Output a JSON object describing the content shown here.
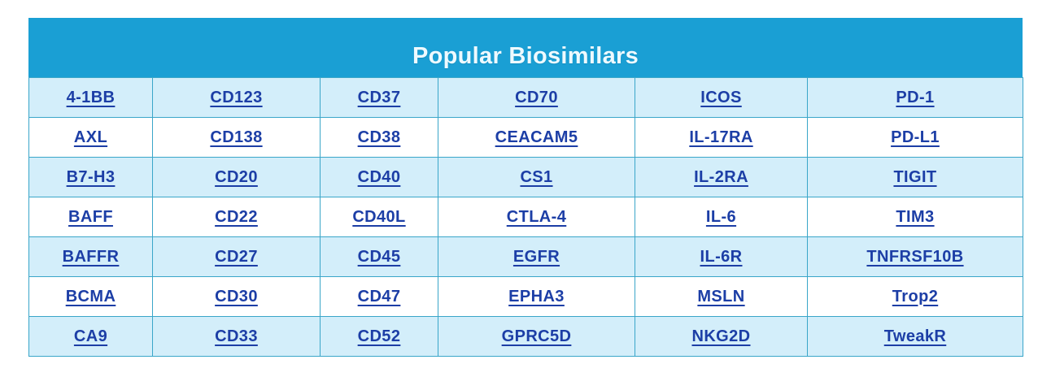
{
  "title": "Popular Biosimilars",
  "colors": {
    "header_bg": "#1a9fd4",
    "header_text": "#eefaff",
    "row_alt_bg": "#d3eefa",
    "row_bg": "#ffffff",
    "cell_border": "#3aa6c9",
    "link": "#1c3ea6"
  },
  "table": {
    "columns": 6,
    "rows": [
      [
        "4-1BB",
        "CD123",
        "CD37",
        "CD70",
        "ICOS",
        "PD-1"
      ],
      [
        "AXL",
        "CD138",
        "CD38",
        "CEACAM5",
        "IL-17RA",
        "PD-L1"
      ],
      [
        "B7-H3",
        "CD20",
        "CD40",
        "CS1",
        "IL-2RA",
        "TIGIT"
      ],
      [
        "BAFF",
        "CD22",
        "CD40L",
        "CTLA-4",
        "IL-6",
        "TIM3"
      ],
      [
        "BAFFR",
        "CD27",
        "CD45",
        "EGFR",
        "IL-6R",
        "TNFRSF10B"
      ],
      [
        "BCMA",
        "CD30",
        "CD47",
        "EPHA3",
        "MSLN",
        "Trop2"
      ],
      [
        "CA9",
        "CD33",
        "CD52",
        "GPRC5D",
        "NKG2D",
        "TweakR"
      ]
    ]
  }
}
